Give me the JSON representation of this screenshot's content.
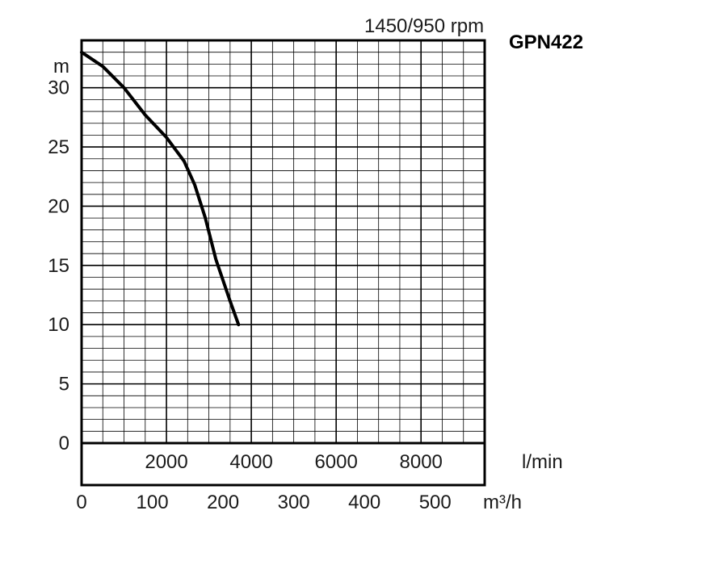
{
  "chart_data": {
    "type": "line",
    "model": "GPN422",
    "speed": "1450/950 rpm",
    "ylabel": "m",
    "xlabel_primary": "m³/h",
    "xlabel_secondary": "l/min",
    "ylim": [
      0,
      34
    ],
    "xlim": [
      0,
      570
    ],
    "y_ticks": [
      "0",
      "5",
      "10",
      "15",
      "20",
      "25",
      "30"
    ],
    "y_tick_values": [
      0,
      5,
      10,
      15,
      20,
      25,
      30
    ],
    "x_ticks": [
      "0",
      "100",
      "200",
      "300",
      "400",
      "500"
    ],
    "x_tick_values": [
      0,
      100,
      200,
      300,
      400,
      500
    ],
    "secondary_ticks": [
      "2000",
      "4000",
      "6000",
      "8000"
    ],
    "secondary_tick_values": [
      2000,
      4000,
      6000,
      8000
    ],
    "grid": true,
    "series": [
      {
        "x": [
          0,
          30,
          60,
          90,
          120,
          145,
          160,
          175,
          190,
          210,
          222
        ],
        "y": [
          33.0,
          31.8,
          30.0,
          27.7,
          25.8,
          23.8,
          21.8,
          19.0,
          15.5,
          12.0,
          10.0
        ]
      }
    ]
  }
}
